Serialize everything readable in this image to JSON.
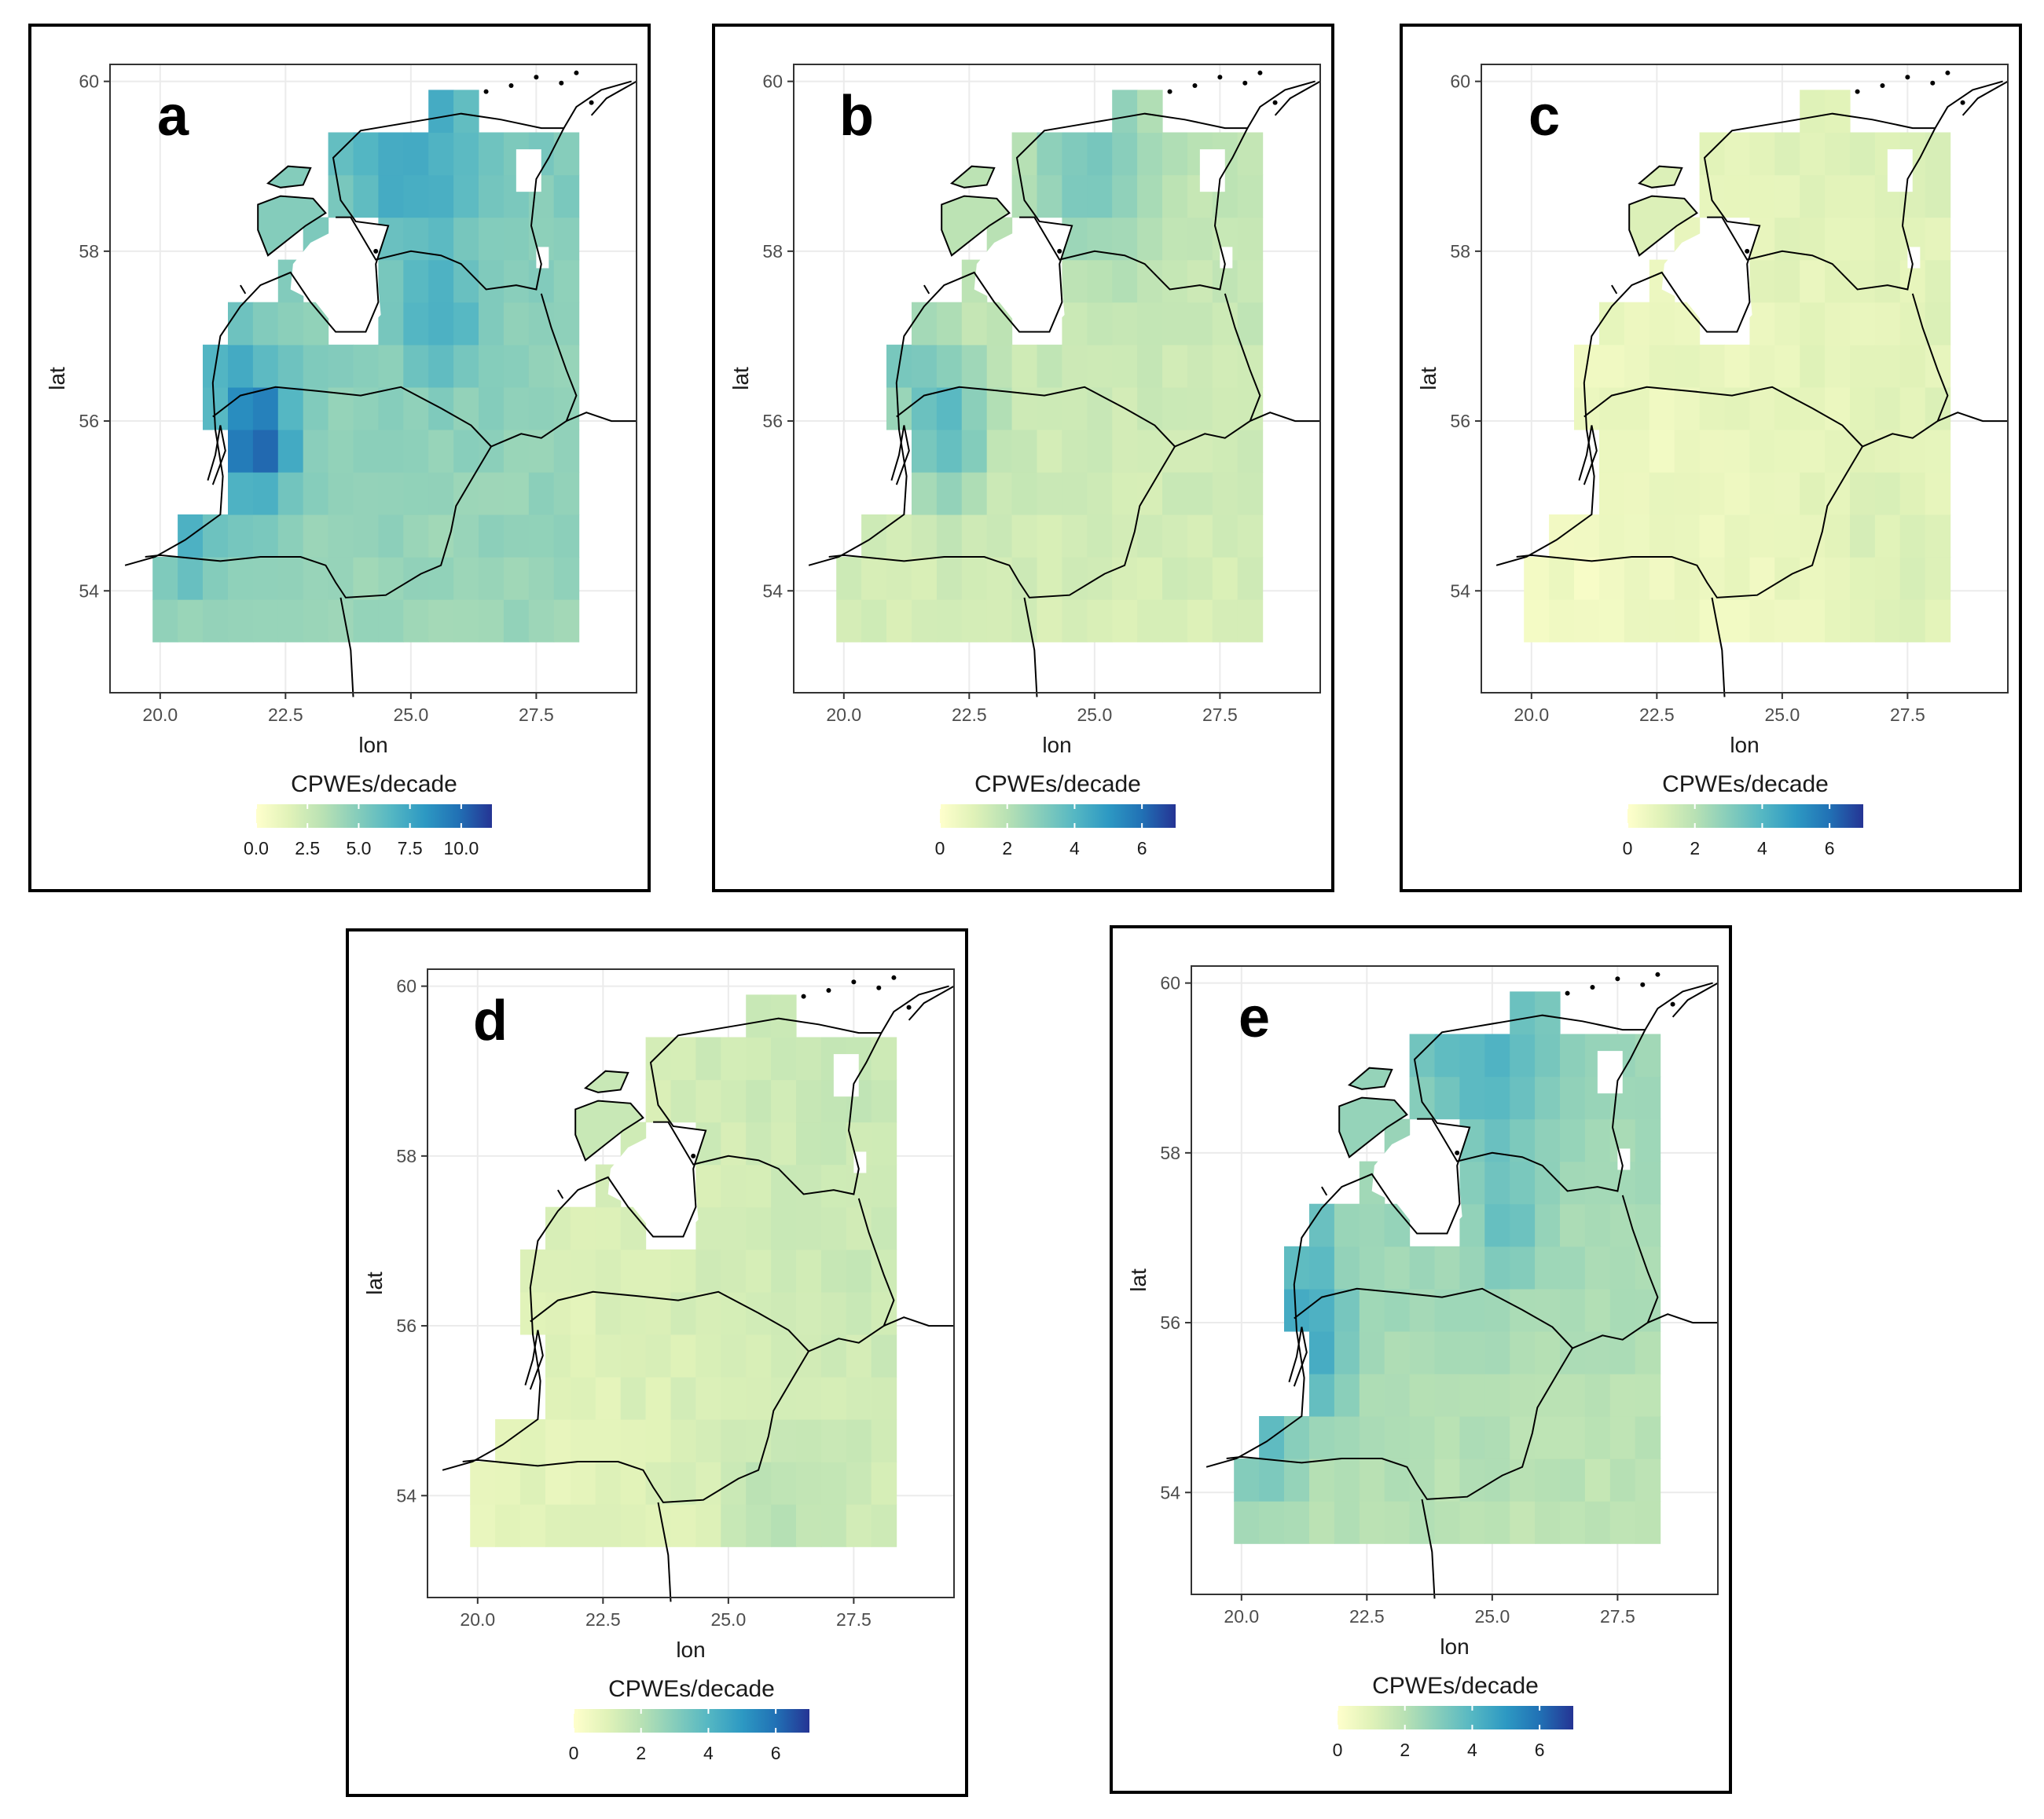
{
  "figure": {
    "colormap": [
      "#ffffcc",
      "#e0f2b8",
      "#b8e1b4",
      "#86cdbb",
      "#55b7c3",
      "#2d99c3",
      "#2171b5",
      "#253494"
    ],
    "water_color": "#ffffff",
    "panel_background": "#ffffff",
    "grid_color": "#ebebeb",
    "border_color": "#000000"
  },
  "chart_data": [
    {
      "type": "heatmap",
      "panel_label": "a",
      "xlabel": "lon",
      "ylabel": "lat",
      "xticks": [
        "20.0",
        "22.5",
        "25.0",
        "27.5"
      ],
      "yticks": [
        "54",
        "56",
        "58",
        "60"
      ],
      "xlim": [
        19.0,
        29.5
      ],
      "ylim": [
        52.8,
        60.2
      ],
      "legend_title": "CPWEs/decade",
      "legend_ticks": [
        "0.0",
        "2.5",
        "5.0",
        "7.5",
        "10.0"
      ],
      "legend_range": [
        0,
        11.5
      ],
      "grid_res_deg": 0.5,
      "base_value": 4.6,
      "gradient": {
        "lon": 0.0,
        "lat": 0.15
      },
      "hotspots": [
        {
          "lon": 21.9,
          "lat": 55.8,
          "radius": 0.8,
          "amplitude": 5.8
        },
        {
          "lon": 25.0,
          "lat": 59.2,
          "radius": 1.3,
          "amplitude": 2.5
        },
        {
          "lon": 25.6,
          "lat": 57.1,
          "radius": 0.7,
          "amplitude": 2.2
        },
        {
          "lon": 20.5,
          "lat": 54.6,
          "radius": 0.6,
          "amplitude": 2.8
        },
        {
          "lon": 21.1,
          "lat": 56.9,
          "radius": 0.6,
          "amplitude": 1.8
        }
      ]
    },
    {
      "type": "heatmap",
      "panel_label": "b",
      "xlabel": "lon",
      "ylabel": "lat",
      "xticks": [
        "20.0",
        "22.5",
        "25.0",
        "27.5"
      ],
      "yticks": [
        "54",
        "56",
        "58",
        "60"
      ],
      "xlim": [
        19.0,
        29.5
      ],
      "ylim": [
        52.8,
        60.2
      ],
      "legend_title": "CPWEs/decade",
      "legend_ticks": [
        "0",
        "2",
        "4",
        "6"
      ],
      "legend_range": [
        0,
        7
      ],
      "grid_res_deg": 0.5,
      "base_value": 1.5,
      "gradient": {
        "lon": 0.0,
        "lat": 0.1
      },
      "hotspots": [
        {
          "lon": 22.0,
          "lat": 55.9,
          "radius": 0.9,
          "amplitude": 2.4
        },
        {
          "lon": 25.0,
          "lat": 59.0,
          "radius": 1.2,
          "amplitude": 1.5
        },
        {
          "lon": 21.2,
          "lat": 56.8,
          "radius": 0.6,
          "amplitude": 1.2
        }
      ]
    },
    {
      "type": "heatmap",
      "panel_label": "c",
      "xlabel": "lon",
      "ylabel": "lat",
      "xticks": [
        "20.0",
        "22.5",
        "25.0",
        "27.5"
      ],
      "yticks": [
        "54",
        "56",
        "58",
        "60"
      ],
      "xlim": [
        19.0,
        29.5
      ],
      "ylim": [
        52.8,
        60.2
      ],
      "legend_title": "CPWEs/decade",
      "legend_ticks": [
        "0",
        "2",
        "4",
        "6"
      ],
      "legend_range": [
        0,
        7
      ],
      "grid_res_deg": 0.5,
      "base_value": 0.7,
      "gradient": {
        "lon": 0.05,
        "lat": 0.05
      },
      "hotspots": [
        {
          "lon": 27.0,
          "lat": 54.3,
          "radius": 1.2,
          "amplitude": 0.4
        }
      ]
    },
    {
      "type": "heatmap",
      "panel_label": "d",
      "xlabel": "lon",
      "ylabel": "lat",
      "xticks": [
        "20.0",
        "22.5",
        "25.0",
        "27.5"
      ],
      "yticks": [
        "54",
        "56",
        "58",
        "60"
      ],
      "xlim": [
        19.0,
        29.5
      ],
      "ylim": [
        52.8,
        60.2
      ],
      "legend_title": "CPWEs/decade",
      "legend_ticks": [
        "0",
        "2",
        "4",
        "6"
      ],
      "legend_range": [
        0,
        7
      ],
      "grid_res_deg": 0.5,
      "base_value": 1.2,
      "gradient": {
        "lon": 0.08,
        "lat": 0.05
      },
      "hotspots": [
        {
          "lon": 26.0,
          "lat": 53.8,
          "radius": 1.0,
          "amplitude": 0.8
        }
      ]
    },
    {
      "type": "heatmap",
      "panel_label": "e",
      "xlabel": "lon",
      "ylabel": "lat",
      "xticks": [
        "20.0",
        "22.5",
        "25.0",
        "27.5"
      ],
      "yticks": [
        "54",
        "56",
        "58",
        "60"
      ],
      "xlim": [
        19.0,
        29.5
      ],
      "ylim": [
        52.8,
        60.2
      ],
      "legend_title": "CPWEs/decade",
      "legend_ticks": [
        "0",
        "2",
        "4",
        "6"
      ],
      "legend_range": [
        0,
        7
      ],
      "grid_res_deg": 0.5,
      "base_value": 2.3,
      "gradient": {
        "lon": -0.05,
        "lat": 0.15
      },
      "hotspots": [
        {
          "lon": 21.3,
          "lat": 55.8,
          "radius": 0.8,
          "amplitude": 2.6
        },
        {
          "lon": 25.0,
          "lat": 59.1,
          "radius": 1.3,
          "amplitude": 1.4
        },
        {
          "lon": 25.4,
          "lat": 57.1,
          "radius": 0.7,
          "amplitude": 1.2
        },
        {
          "lon": 20.5,
          "lat": 54.5,
          "radius": 0.6,
          "amplitude": 1.5
        },
        {
          "lon": 21.2,
          "lat": 57.1,
          "radius": 0.6,
          "amplitude": 1.2
        }
      ]
    }
  ]
}
